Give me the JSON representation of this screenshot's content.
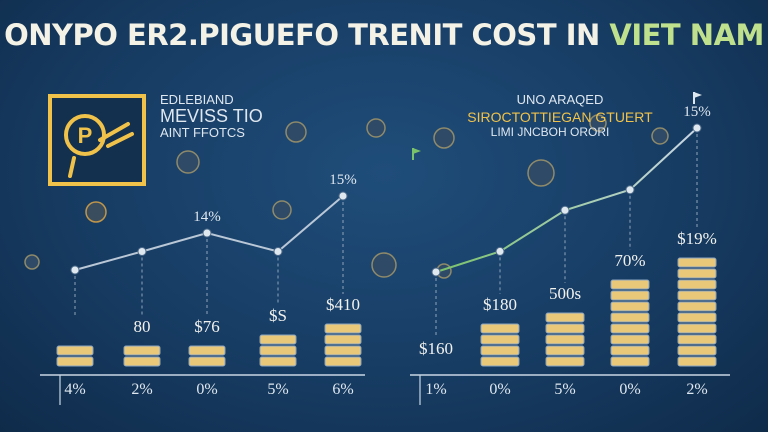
{
  "header": {
    "title_main": "ONYPO ER2.PIGUEFO TRENIT COST IN",
    "title_accent": "VIET NAM"
  },
  "colors": {
    "accent_green": "#bfe08c",
    "gold": "#f0c24a",
    "bar_fill": "#e9c87a",
    "bar_edge": "#8aa4c0",
    "line_left": "#b9c7d6",
    "line_right_start": "#79c26a",
    "line_right_end": "#c9d6e4"
  },
  "icons": {
    "badge": "coin-hand-icon",
    "coin": "coin-icon",
    "flag": "flag-icon",
    "pin": "pin-icon"
  },
  "left_panel": {
    "caption": [
      "EDLEBIAND",
      "MEVISS TIO",
      "AINT FFOTCS"
    ]
  },
  "right_panel": {
    "caption": [
      "UNO ARAQED",
      "SIROCTOTTIEGAN GTUERT",
      "LIMI JNCBOH ORORI"
    ]
  },
  "chart_data": [
    {
      "type": "bar",
      "categories": [
        "4%",
        "2%",
        "0%",
        "5%",
        "6%"
      ],
      "values": [
        2,
        2,
        2,
        3,
        4
      ],
      "bar_labels": [
        "",
        "80",
        "$76",
        "$S",
        "$410"
      ],
      "line": [
        0,
        1,
        2,
        1,
        4
      ],
      "line_labels": [
        "",
        "",
        "14%",
        "",
        "15%"
      ],
      "ylim": [
        0,
        6
      ]
    },
    {
      "type": "bar",
      "categories": [
        "1%",
        "0%",
        "5%",
        "0%",
        "2%"
      ],
      "values": [
        0,
        4,
        5,
        8,
        10
      ],
      "bar_labels": [
        "$160",
        "$180",
        "500s",
        "70%",
        "$19%"
      ],
      "line": [
        1,
        2,
        4,
        5,
        8
      ],
      "line_labels": [
        "",
        "",
        "",
        "",
        "15%"
      ],
      "ylim": [
        0,
        10
      ]
    }
  ]
}
